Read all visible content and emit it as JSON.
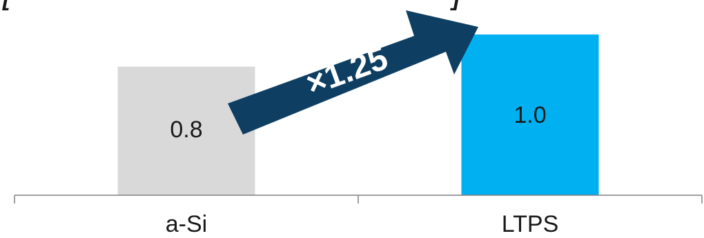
{
  "chart_data": {
    "type": "bar",
    "categories": [
      "a-Si",
      "LTPS"
    ],
    "values": [
      0.8,
      1.0
    ],
    "value_labels": [
      "0.8",
      "1.0"
    ],
    "bar_colors": [
      "#d9d9d9",
      "#00b0f0"
    ],
    "ylim": [
      0,
      1.0
    ],
    "grid": false,
    "legend": "none",
    "annotation": {
      "text": "×1.25",
      "color": "#0e3f63",
      "text_color": "#ffffff"
    },
    "axis_color": "#808080"
  }
}
